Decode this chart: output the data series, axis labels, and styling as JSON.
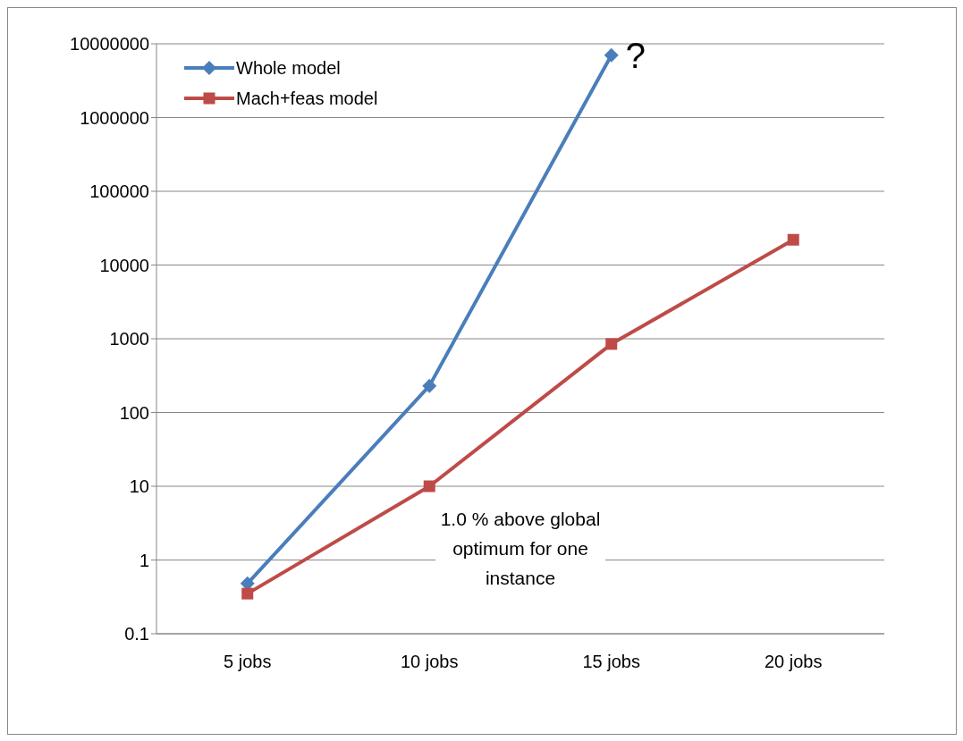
{
  "chart_data": {
    "type": "line",
    "categories": [
      "5 jobs",
      "10 jobs",
      "15 jobs",
      "20 jobs"
    ],
    "series": [
      {
        "name": "Whole model",
        "color": "#4a7ebb",
        "marker": "diamond",
        "values": [
          0.48,
          230,
          7000000,
          null
        ]
      },
      {
        "name": "Mach+feas model",
        "color": "#be4b48",
        "marker": "square",
        "values": [
          0.35,
          10,
          850,
          22000
        ]
      }
    ],
    "log": "y",
    "ylim": [
      0.1,
      10000000
    ],
    "yticks": [
      0.1,
      1,
      10,
      100,
      1000,
      10000,
      100000,
      1000000,
      10000000
    ],
    "grid": "y",
    "legend": "top left",
    "line_style": "solid",
    "annotations": [
      {
        "text": "?",
        "x": "15 jobs",
        "y": 7000000
      },
      "1.0 % above global optimum for one instance"
    ]
  }
}
